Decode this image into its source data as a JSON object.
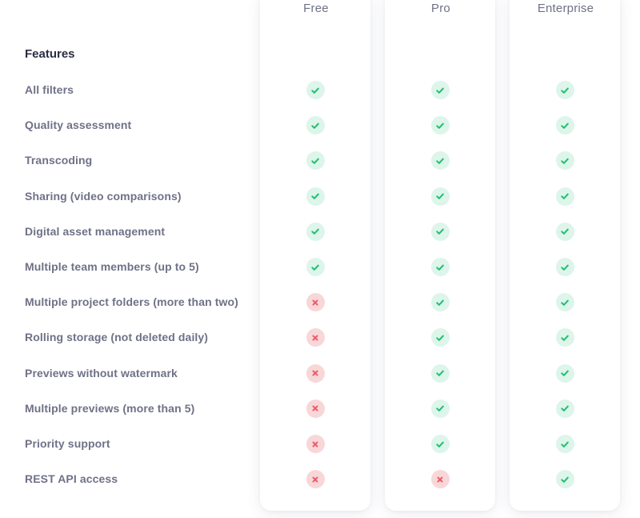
{
  "colors": {
    "check": "#1fbf6e",
    "check_bg": "#ddf5ea",
    "cross": "#ef5b6a",
    "cross_bg": "#f8d7d9",
    "label": "#6f7187",
    "heading": "#2b2d42"
  },
  "plans": [
    {
      "name": "Free"
    },
    {
      "name": "Pro"
    },
    {
      "name": "Enterprise"
    }
  ],
  "section_title": "Features",
  "features": [
    {
      "label": "All filters",
      "availability": [
        true,
        true,
        true
      ]
    },
    {
      "label": "Quality assessment",
      "availability": [
        true,
        true,
        true
      ]
    },
    {
      "label": "Transcoding",
      "availability": [
        true,
        true,
        true
      ]
    },
    {
      "label": "Sharing (video comparisons)",
      "availability": [
        true,
        true,
        true
      ]
    },
    {
      "label": "Digital asset management",
      "availability": [
        true,
        true,
        true
      ]
    },
    {
      "label": "Multiple team members (up to 5)",
      "availability": [
        true,
        true,
        true
      ]
    },
    {
      "label": "Multiple project folders (more than two)",
      "availability": [
        false,
        true,
        true
      ]
    },
    {
      "label": "Rolling storage (not deleted daily)",
      "availability": [
        false,
        true,
        true
      ]
    },
    {
      "label": "Previews without watermark",
      "availability": [
        false,
        true,
        true
      ]
    },
    {
      "label": "Multiple previews (more than 5)",
      "availability": [
        false,
        true,
        true
      ]
    },
    {
      "label": "Priority support",
      "availability": [
        false,
        true,
        true
      ]
    },
    {
      "label": "REST API access",
      "availability": [
        false,
        false,
        true
      ]
    }
  ],
  "icons": {
    "available": "check-icon",
    "unavailable": "cross-icon"
  }
}
